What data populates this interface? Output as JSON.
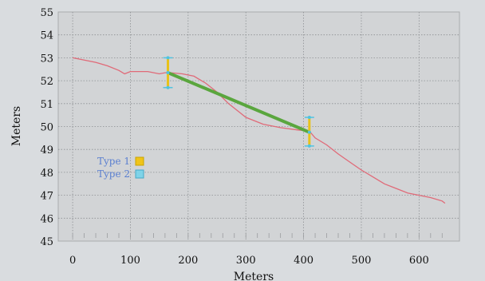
{
  "chart_data": {
    "type": "line",
    "xlabel": "Meters",
    "ylabel": "Meters",
    "xlim": [
      -25,
      670
    ],
    "ylim": [
      45,
      55
    ],
    "x_ticks": [
      0,
      100,
      200,
      300,
      400,
      500,
      600
    ],
    "y_ticks": [
      45,
      46,
      47,
      48,
      49,
      50,
      51,
      52,
      53,
      54,
      55
    ],
    "grid": true,
    "legend_position": "middle-left",
    "legend": [
      {
        "label": "Type 1",
        "color": "#f0c419"
      },
      {
        "label": "Type 2",
        "color": "#7fd3e8"
      }
    ],
    "colors": {
      "profile": "#e06a78",
      "segment": "#5aa63e",
      "type1": "#e8c21a",
      "type2": "#4fc3e0",
      "legend_text": "#5a7fd0"
    },
    "series": [
      {
        "x": [
          0,
          20,
          40,
          60,
          80,
          90,
          100,
          130,
          150,
          160,
          170,
          190,
          210,
          230,
          250,
          270,
          290,
          300,
          330,
          360,
          390,
          410,
          420,
          440,
          460,
          480,
          500,
          520,
          540,
          560,
          580,
          600,
          620,
          640,
          645
        ],
        "y": [
          53.0,
          52.9,
          52.8,
          52.65,
          52.45,
          52.3,
          52.4,
          52.4,
          52.3,
          52.35,
          52.35,
          52.3,
          52.2,
          51.9,
          51.5,
          51.0,
          50.6,
          50.4,
          50.1,
          49.95,
          49.85,
          49.8,
          49.5,
          49.2,
          48.8,
          48.45,
          48.1,
          47.8,
          47.5,
          47.3,
          47.1,
          47.0,
          46.9,
          46.75,
          46.65
        ]
      }
    ],
    "segment": {
      "x": [
        165,
        410
      ],
      "y": [
        52.35,
        49.75
      ]
    },
    "error_bars": [
      {
        "x": 165,
        "y": 52.35,
        "low": 51.7,
        "high": 53.0
      },
      {
        "x": 410,
        "y": 49.75,
        "low": 49.15,
        "high": 50.4
      }
    ]
  }
}
